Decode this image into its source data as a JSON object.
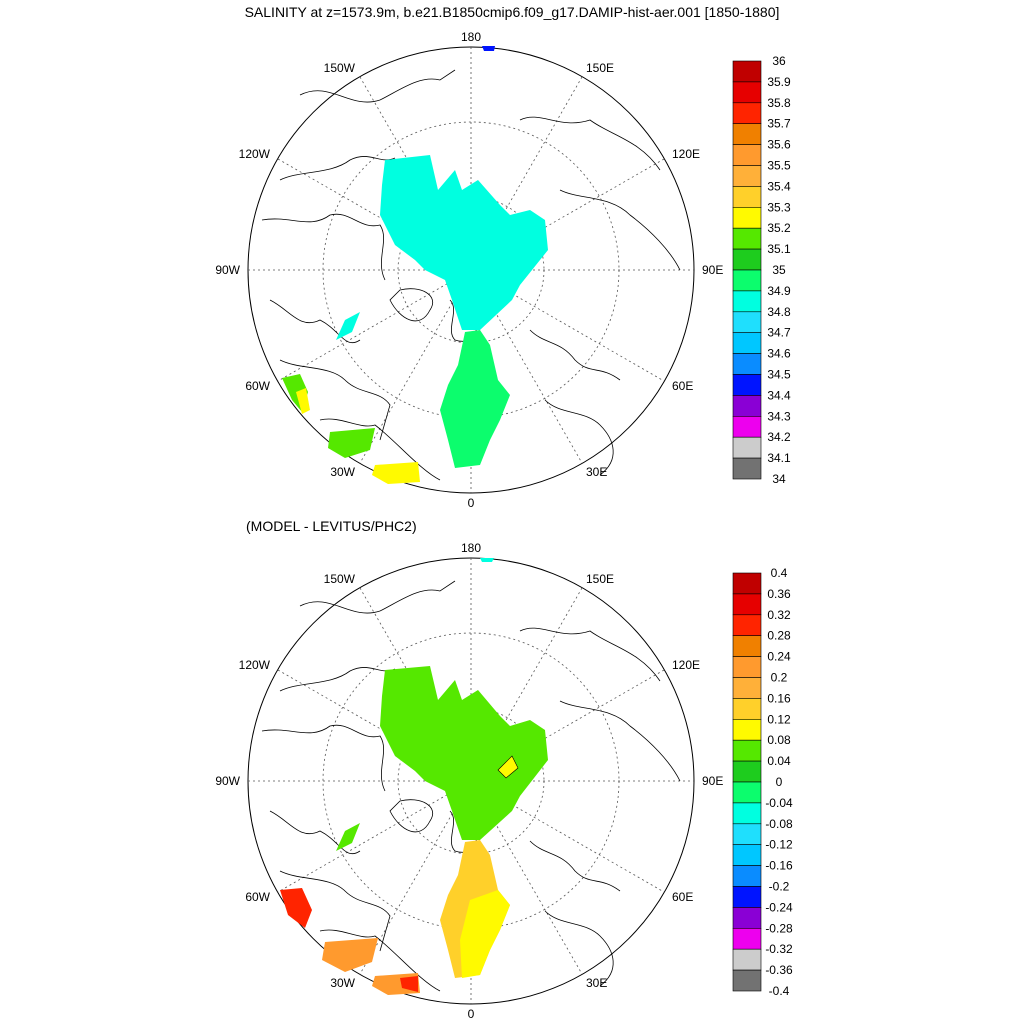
{
  "title": "SALINITY at z=1573.9m, b.e21.B1850cmip6.f09_g17.DAMIP-hist-aer.001 [1850-1880]",
  "subtitle": "(MODEL - LEVITUS/PHC2)",
  "longitude_labels": {
    "lon_180": "180",
    "lon_150W": "150W",
    "lon_150E": "150E",
    "lon_120W": "120W",
    "lon_120E": "120E",
    "lon_90W": "90W",
    "lon_90E": "90E",
    "lon_60W": "60W",
    "lon_60E": "60E",
    "lon_30W": "30W",
    "lon_30E": "30E",
    "lon_0": "0"
  },
  "colorbar_top": {
    "labels": [
      "36",
      "35.9",
      "35.8",
      "35.7",
      "35.6",
      "35.5",
      "35.4",
      "35.3",
      "35.2",
      "35.1",
      "35",
      "34.9",
      "34.8",
      "34.7",
      "34.6",
      "34.5",
      "34.4",
      "34.3",
      "34.2",
      "34.1",
      "34"
    ],
    "colors": [
      "#c00000",
      "#e60000",
      "#ff2400",
      "#f08000",
      "#ff9a2e",
      "#ffb039",
      "#ffd02a",
      "#fffa00",
      "#55e800",
      "#1ecc1e",
      "#0cfd6d",
      "#00ffe0",
      "#1fdffd",
      "#00c7ff",
      "#0a8cff",
      "#0014ff",
      "#8a00d5",
      "#ed00ee",
      "#cccccc",
      "#727272"
    ]
  },
  "colorbar_bottom": {
    "labels": [
      "0.4",
      "0.36",
      "0.32",
      "0.28",
      "0.24",
      "0.2",
      "0.16",
      "0.12",
      "0.08",
      "0.04",
      "0",
      "-0.04",
      "-0.08",
      "-0.12",
      "-0.16",
      "-0.2",
      "-0.24",
      "-0.28",
      "-0.32",
      "-0.36",
      "-0.4"
    ],
    "colors": [
      "#c00000",
      "#e60000",
      "#ff2400",
      "#f08000",
      "#ff9a2e",
      "#ffb039",
      "#ffd02a",
      "#fffa00",
      "#55e800",
      "#1ecc1e",
      "#0cfd6d",
      "#00ffe0",
      "#1fdffd",
      "#00c7ff",
      "#0a8cff",
      "#0014ff",
      "#8a00d5",
      "#ed00ee",
      "#cccccc",
      "#727272"
    ]
  }
}
